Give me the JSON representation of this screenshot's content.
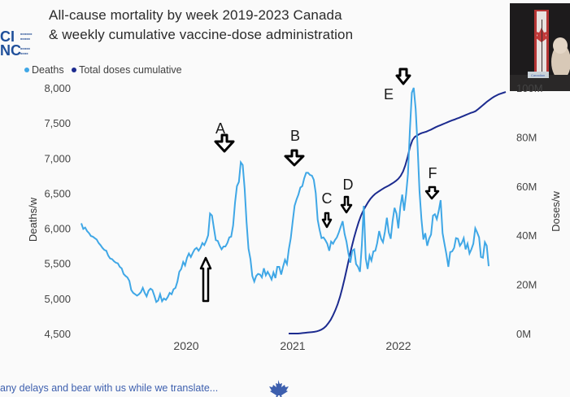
{
  "header": {
    "title_line1": "All-cause mortality by week 2019-2023 Canada",
    "title_line2": "& weekly cumulative vaccine-dose administration"
  },
  "video_overlay": {
    "badge": "Canadian"
  },
  "caption": "any delays and bear with us while we translate...",
  "colors": {
    "deaths": "#3fa7e6",
    "doses": "#1c2b8f",
    "arrows": "#000000"
  },
  "chart_data": {
    "type": "line",
    "x_tick_labels": [
      "2020",
      "2021",
      "2022"
    ],
    "ylabel": "Deaths/w",
    "y2label": "Doses/w",
    "ylim": [
      4500,
      8000
    ],
    "y_ticks": [
      "4,500",
      "5,000",
      "5,500",
      "6,000",
      "6,500",
      "7,000",
      "7,500",
      "8,000"
    ],
    "y2_ticks": [
      "0M",
      "20M",
      "40M",
      "60M",
      "80M"
    ],
    "y2_top_tick_partial": "100M",
    "y2lim": [
      0,
      100
    ],
    "grid": false,
    "legend_position": "top-left",
    "annotations": [
      "A",
      "B",
      "C",
      "D",
      "E",
      "F"
    ],
    "series": [
      {
        "name": "Deaths",
        "axis": "left",
        "values": [
          6070,
          5990,
          6010,
          5960,
          5930,
          5890,
          5880,
          5860,
          5840,
          5790,
          5760,
          5720,
          5690,
          5680,
          5610,
          5570,
          5560,
          5530,
          5510,
          5500,
          5450,
          5430,
          5350,
          5320,
          5300,
          5250,
          5120,
          5080,
          5060,
          5040,
          5060,
          5090,
          5150,
          5080,
          5030,
          5110,
          5140,
          5120,
          5040,
          4950,
          4970,
          5060,
          4960,
          5000,
          4980,
          5020,
          5080,
          5060,
          5130,
          5150,
          5240,
          5380,
          5420,
          5520,
          5470,
          5580,
          5640,
          5590,
          5650,
          5700,
          5720,
          5680,
          5720,
          5790,
          5760,
          5820,
          5900,
          6210,
          6180,
          6000,
          5830,
          5820,
          5750,
          5700,
          5740,
          5740,
          5790,
          5870,
          5880,
          6040,
          6370,
          6600,
          6660,
          6940,
          6900,
          6560,
          6090,
          5710,
          5560,
          5320,
          5240,
          5320,
          5350,
          5340,
          5300,
          5430,
          5330,
          5380,
          5330,
          5270,
          5370,
          5290,
          5450,
          5450,
          5340,
          5450,
          5550,
          5490,
          5700,
          5860,
          6100,
          6320,
          6410,
          6480,
          6580,
          6600,
          6710,
          6790,
          6790,
          6760,
          6750,
          6690,
          6500,
          6120,
          5980,
          5860,
          5870,
          5830,
          5780,
          5680,
          5810,
          5780,
          5830,
          5870,
          5940,
          6020,
          6100,
          5920,
          5810,
          5640,
          5510,
          5680,
          5700,
          5490,
          5450,
          5380,
          5760,
          6320,
          5570,
          5420,
          5610,
          5540,
          5670,
          5680,
          5790,
          5960,
          5850,
          5800,
          5950,
          6150,
          5940,
          5850,
          6100,
          6290,
          6210,
          6000,
          6300,
          6480,
          6250,
          6480,
          6770,
          7400,
          7930,
          8000,
          7700,
          7160,
          6530,
          6130,
          5840,
          5930,
          5750,
          5850,
          5910,
          6180,
          6200,
          6130,
          6250,
          6400,
          5930,
          5780,
          5630,
          5450,
          5660,
          5670,
          5720,
          5860,
          5850,
          5750,
          5790,
          5860,
          5700,
          5780,
          5640,
          5700,
          5780,
          6000,
          5940,
          5870,
          5590,
          5580,
          5800,
          5750,
          5460
        ],
        "color": "#3fa7e6"
      },
      {
        "name": "Total doses cumulative",
        "axis": "right",
        "values": [
          0,
          0,
          0,
          0,
          0,
          0.1,
          0.2,
          0.3,
          0.4,
          0.5,
          0.6,
          0.7,
          0.9,
          1.2,
          1.6,
          2.2,
          3.0,
          4.2,
          5.6,
          7.4,
          9.5,
          12.0,
          15.0,
          18.5,
          22.5,
          26.8,
          31.0,
          35.2,
          39.0,
          42.4,
          45.4,
          48.0,
          50.1,
          51.8,
          53.4,
          54.8,
          55.9,
          56.8,
          57.5,
          58.1,
          58.7,
          59.3,
          59.8,
          60.3,
          60.9,
          61.5,
          62.2,
          63.0,
          64.2,
          66.0,
          68.5,
          72.0,
          76.0,
          78.7,
          80.0,
          80.6,
          81.2,
          81.6,
          81.9,
          82.2,
          82.6,
          83.0,
          83.5,
          84.0,
          84.4,
          84.8,
          85.2,
          85.6,
          86.0,
          86.4,
          86.8,
          87.1,
          87.5,
          87.8,
          88.2,
          88.6,
          89.0,
          89.4,
          89.8,
          90.1,
          90.5,
          91.2,
          92.0,
          92.8,
          93.6,
          94.4,
          95.1,
          95.8,
          96.4,
          96.9,
          97.4,
          97.7,
          98.0,
          98.3
        ],
        "color": "#1c2b8f"
      }
    ]
  }
}
